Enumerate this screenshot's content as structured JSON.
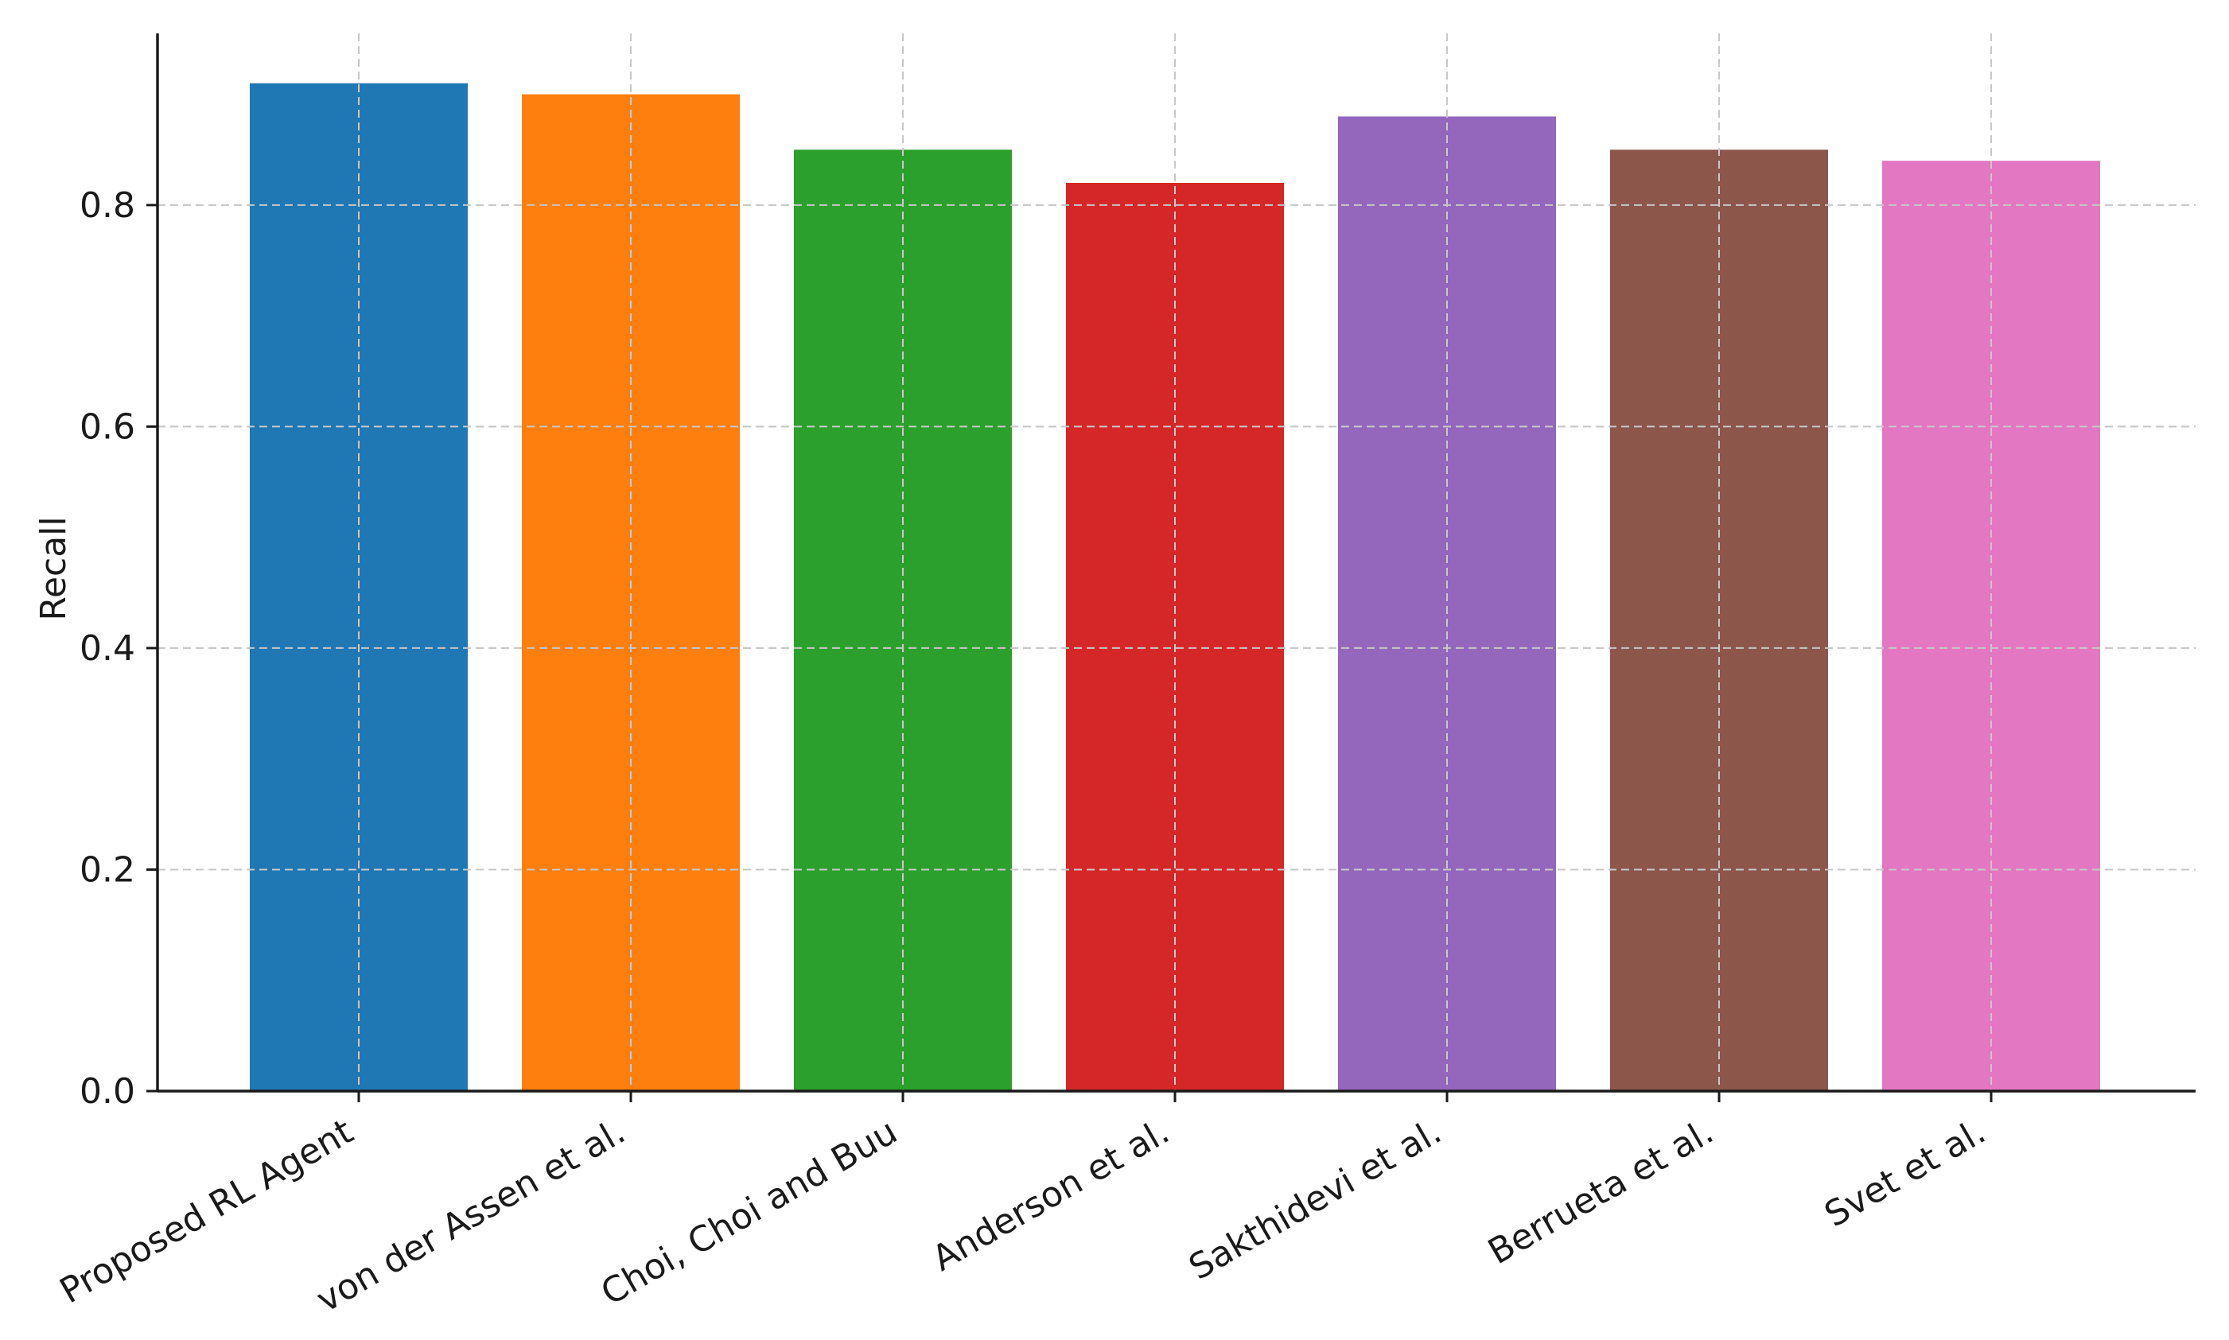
{
  "chart_data": {
    "type": "bar",
    "title": "",
    "xlabel": "",
    "ylabel": "Recall",
    "categories": [
      "Proposed RL Agent",
      "von der Assen et al.",
      "Choi, Choi and Buu",
      "Anderson et al.",
      "Sakthidevi et al.",
      "Berrueta et al.",
      "Svet et al."
    ],
    "values": [
      0.91,
      0.9,
      0.85,
      0.82,
      0.88,
      0.85,
      0.84
    ],
    "colors": [
      "#1f77b4",
      "#ff7f0e",
      "#2ca02c",
      "#d62728",
      "#9467bd",
      "#8c564b",
      "#e377c2"
    ],
    "ylim": [
      0,
      0.955
    ],
    "yticks": [
      "0.0",
      "0.2",
      "0.4",
      "0.6",
      "0.8"
    ],
    "x_tick_rotation": "30 degrees",
    "grid": true,
    "grid_style": "dashed",
    "legend": "none"
  }
}
